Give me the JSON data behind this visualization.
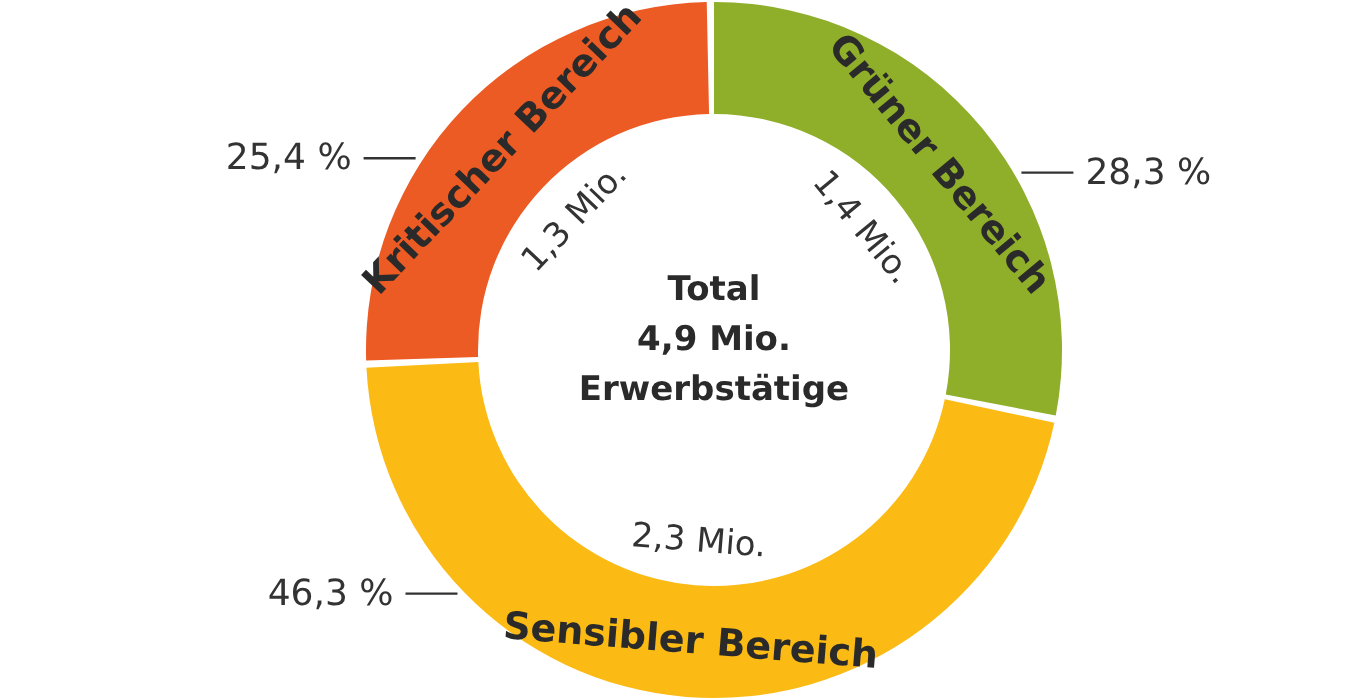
{
  "chart_data": {
    "type": "donut",
    "title": "Total\n4,9 Mio.\nErwerbstätige",
    "categories": [
      "Grüner Bereich",
      "Sensibler Bereich",
      "Kritischer Bereich"
    ],
    "values": [
      28.3,
      46.3,
      25.4
    ],
    "colors": [
      "#8fae2a",
      "#fbba14",
      "#ec5b24"
    ],
    "value_labels": [
      "28,3 %",
      "46,3 %",
      "25,4 %"
    ],
    "annotations": [
      {
        "text": "1,4 Mio.",
        "x": "Grüner Bereich"
      },
      {
        "text": "2,3 Mio.",
        "x": "Sensibler Bereich"
      },
      {
        "text": "1,3 Mio.",
        "x": "Kritischer Bereich"
      }
    ]
  }
}
